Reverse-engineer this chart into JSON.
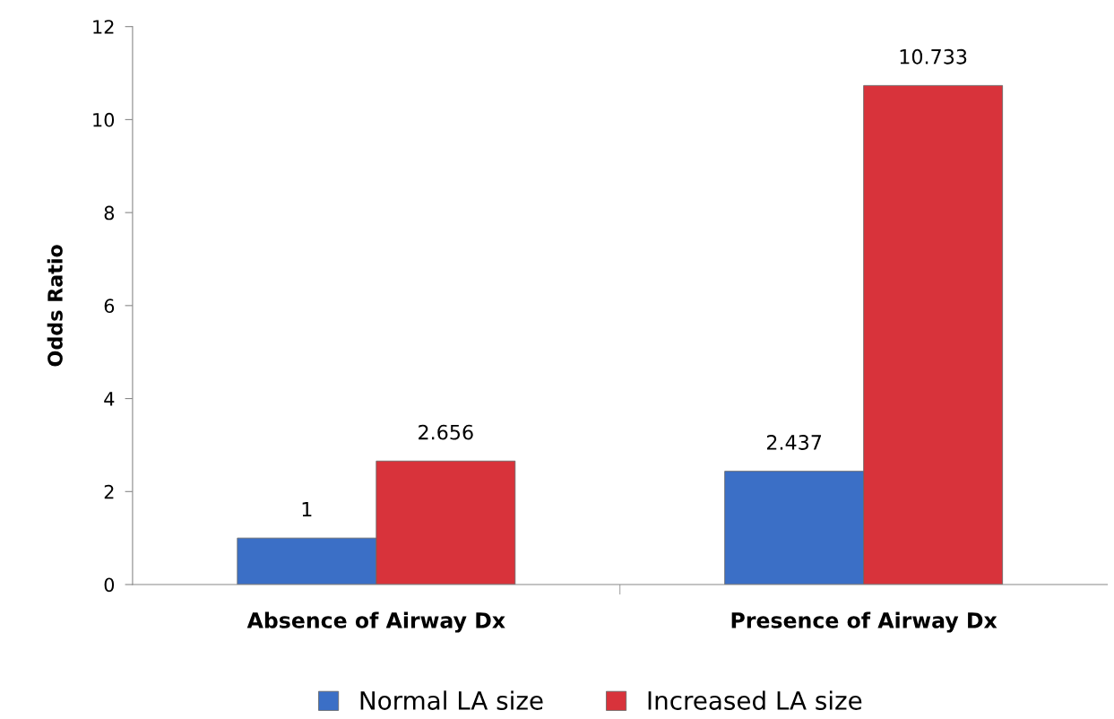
{
  "chart_data": {
    "type": "bar",
    "ylabel": "Odds Ratio",
    "categories": [
      "Absence of Airway Dx",
      "Presence of Airway Dx"
    ],
    "series": [
      {
        "name": "Normal LA size",
        "color": "#3b6fc6",
        "values": [
          1,
          2.437
        ]
      },
      {
        "name": "Increased LA size",
        "color": "#d8333b",
        "values": [
          2.656,
          10.733
        ]
      }
    ],
    "ylim": [
      0,
      12
    ],
    "yticks": [
      0,
      2,
      4,
      6,
      8,
      10,
      12
    ],
    "data_labels": true,
    "legend": "bottom",
    "grid": false
  }
}
